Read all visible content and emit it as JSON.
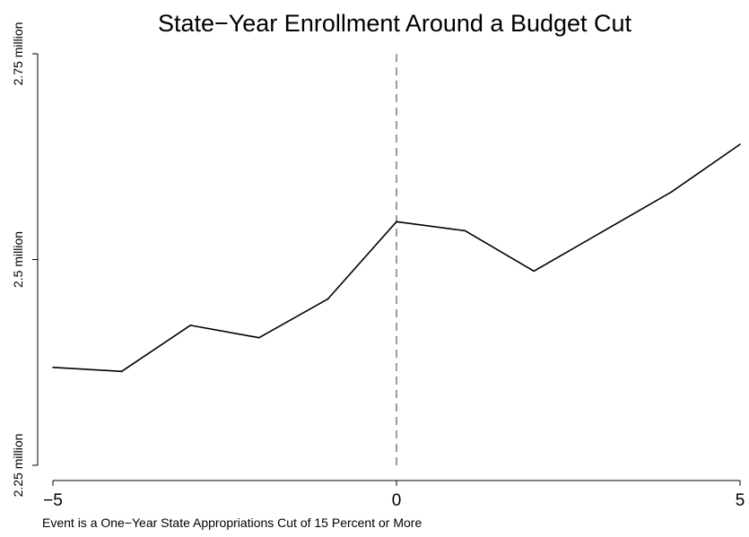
{
  "chart_data": {
    "type": "line",
    "title": "State−Year Enrollment Around a Budget Cut",
    "xlabel": "Event is a One−Year State Appropriations Cut of 15 Percent or More",
    "ylabel": "",
    "xlim": [
      -5,
      5
    ],
    "ylim": [
      2.25,
      2.75
    ],
    "x_ticks": [
      -5,
      0,
      5
    ],
    "x_tick_labels": [
      "−5",
      "0",
      "5"
    ],
    "y_ticks": [
      2.25,
      2.5,
      2.75
    ],
    "y_tick_labels": [
      "2.25 million",
      "2.5 million",
      "2.75 million"
    ],
    "reference_line": {
      "x": 0,
      "style": "dashed"
    },
    "grid": false,
    "legend": false,
    "series": [
      {
        "x": [
          -5,
          -4,
          -3,
          -2,
          -1,
          0,
          1,
          2,
          3,
          4,
          5
        ],
        "y": [
          2.369,
          2.364,
          2.42,
          2.405,
          2.452,
          2.546,
          2.535,
          2.486,
          2.534,
          2.582,
          2.64
        ],
        "color": "#000000"
      }
    ]
  }
}
